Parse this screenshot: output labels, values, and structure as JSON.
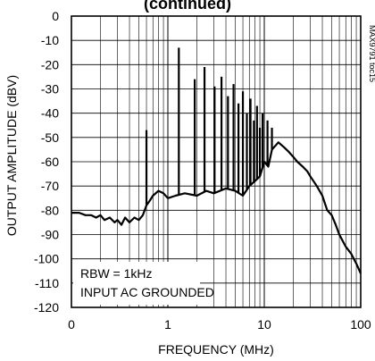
{
  "chart_data": {
    "type": "line",
    "title": "(continued)",
    "xlabel": "FREQUENCY (MHz)",
    "ylabel": "OUTPUT AMPLITUDE (dBV)",
    "x_scale": "log",
    "xlim": [
      0.1,
      100
    ],
    "ylim": [
      -120,
      0
    ],
    "x_tick_values": [
      0.1,
      1,
      10,
      100
    ],
    "x_tick_labels": [
      "0",
      "1",
      "10",
      "100"
    ],
    "y_tick_values": [
      0,
      -10,
      -20,
      -30,
      -40,
      -50,
      -60,
      -70,
      -80,
      -90,
      -100,
      -110,
      -120
    ],
    "y_tick_labels": [
      "0",
      "-10",
      "-20",
      "-30",
      "-40",
      "-50",
      "-60",
      "-70",
      "-80",
      "-90",
      "-100",
      "-110",
      "-120"
    ],
    "grid": true,
    "annotations": [
      "RBW = 1kHz",
      "INPUT AC GROUNDED"
    ],
    "side_label": "MAX9791 toc15",
    "series": [
      {
        "x": [
          0.1,
          0.12,
          0.14,
          0.16,
          0.18,
          0.2,
          0.22,
          0.25,
          0.28,
          0.3,
          0.33,
          0.36,
          0.4,
          0.45,
          0.5,
          0.55,
          0.6,
          0.65,
          0.7,
          0.8,
          0.9,
          1.0,
          1.2,
          1.5,
          2.0,
          2.5,
          3.0,
          4.0,
          5.0,
          6.0,
          7.0,
          8.0,
          9.0,
          10,
          11,
          12,
          14,
          16,
          18,
          20,
          22,
          25,
          28,
          30,
          35,
          40,
          45,
          50,
          55,
          60,
          70,
          80,
          90,
          100
        ],
        "y": [
          -81,
          -81,
          -82,
          -82,
          -83,
          -82,
          -84,
          -83,
          -85,
          -84,
          -86,
          -83,
          -85,
          -83,
          -84,
          -82,
          -78,
          -76,
          -74,
          -72,
          -73,
          -75,
          -74,
          -73,
          -74,
          -72,
          -73,
          -71,
          -72,
          -74,
          -70,
          -68,
          -66,
          -60,
          -62,
          -55,
          -52,
          -54,
          -56,
          -58,
          -60,
          -62,
          -64,
          -66,
          -70,
          -74,
          -80,
          -82,
          -86,
          -90,
          -95,
          -98,
          -102,
          -106
        ]
      }
    ],
    "spikes": [
      {
        "x": 0.6,
        "y": -47
      },
      {
        "x": 1.3,
        "y": -13
      },
      {
        "x": 1.9,
        "y": -26
      },
      {
        "x": 2.4,
        "y": -21
      },
      {
        "x": 3.05,
        "y": -29
      },
      {
        "x": 3.6,
        "y": -25
      },
      {
        "x": 4.2,
        "y": -33
      },
      {
        "x": 4.8,
        "y": -28
      },
      {
        "x": 5.4,
        "y": -36
      },
      {
        "x": 6.0,
        "y": -31
      },
      {
        "x": 6.6,
        "y": -40
      },
      {
        "x": 7.2,
        "y": -34
      },
      {
        "x": 7.8,
        "y": -43
      },
      {
        "x": 8.4,
        "y": -37
      },
      {
        "x": 9.0,
        "y": -46
      },
      {
        "x": 9.6,
        "y": -40
      },
      {
        "x": 10.8,
        "y": -43
      },
      {
        "x": 12.0,
        "y": -46
      }
    ]
  }
}
